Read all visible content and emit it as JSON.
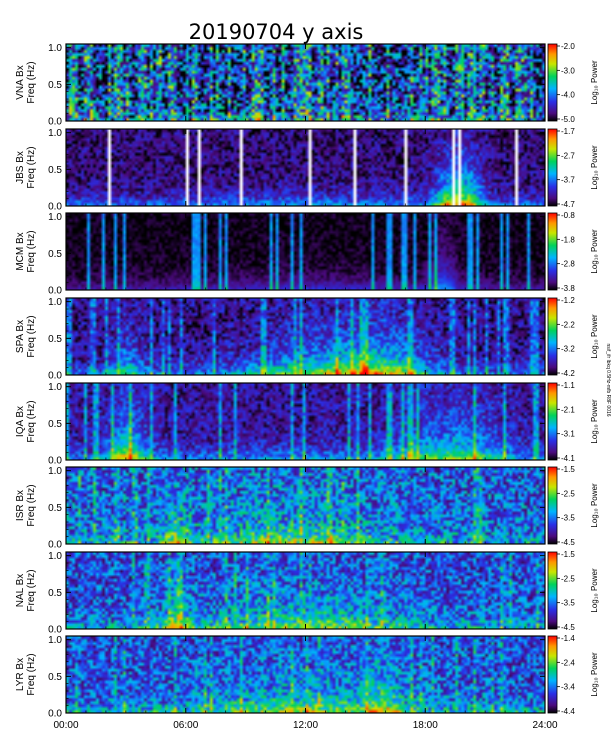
{
  "chart_data": {
    "type": "heatmap",
    "title": "20190704  y axis",
    "xlabel": "",
    "x_range_hours": [
      0,
      24
    ],
    "x_ticks": [
      "00:00",
      "06:00",
      "12:00",
      "18:00",
      "24:00"
    ],
    "ylim": [
      0,
      1.05
    ],
    "y_ticks": [
      "0.0",
      "0.5",
      "1.0"
    ],
    "ylabel_suffix": "Freq (Hz)",
    "colorbar_label": "Log₁₀ Power",
    "side_note": "nsif_ifr lbkq 0.5Hz-mfb R8F 0016",
    "panels": [
      {
        "station": "VNA Bx",
        "cbar_max": "-2.0",
        "cbar_ticks": [
          "-2.0",
          "-3.0",
          "-4.0",
          "-5.0"
        ]
      },
      {
        "station": "JBS Bx",
        "cbar_max": "-1.7",
        "cbar_ticks": [
          "-1.7",
          "-2.7",
          "-3.7",
          "-4.7"
        ]
      },
      {
        "station": "MCM Bx",
        "cbar_max": "-0.8",
        "cbar_ticks": [
          "-0.8",
          "-1.8",
          "-2.8",
          "-3.8"
        ]
      },
      {
        "station": "SPA Bx",
        "cbar_max": "-1.2",
        "cbar_ticks": [
          "-1.2",
          "-2.2",
          "-3.2",
          "-4.2"
        ]
      },
      {
        "station": "IQA Bx",
        "cbar_max": "-1.1",
        "cbar_ticks": [
          "-1.1",
          "-2.1",
          "-3.1",
          "-4.1"
        ]
      },
      {
        "station": "ISR Bx",
        "cbar_max": "-1.5",
        "cbar_ticks": [
          "-1.5",
          "-2.5",
          "-3.5",
          "-4.5"
        ]
      },
      {
        "station": "NAL Bx",
        "cbar_max": "-1.5",
        "cbar_ticks": [
          "-1.5",
          "-2.5",
          "-3.5",
          "-4.5"
        ]
      },
      {
        "station": "LYR Bx",
        "cbar_max": "-1.4",
        "cbar_ticks": [
          "-1.4",
          "-2.4",
          "-3.4",
          "-4.4"
        ]
      }
    ]
  }
}
